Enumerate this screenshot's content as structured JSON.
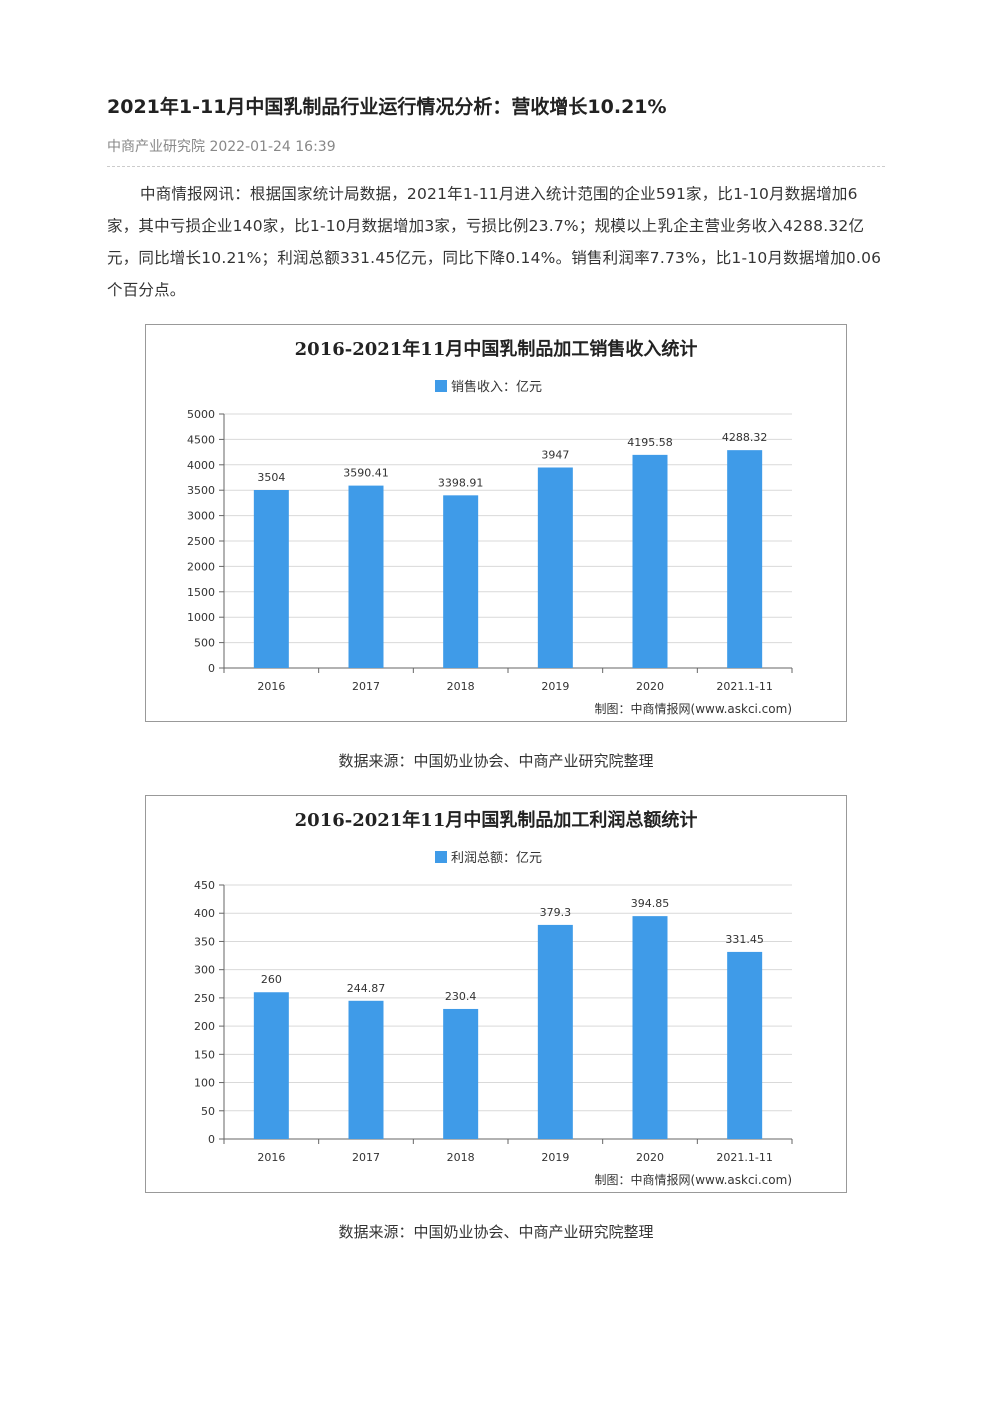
{
  "article": {
    "title": "2021年1-11月中国乳制品行业运行情况分析：营收增长10.21%",
    "meta": "中商产业研究院 2022-01-24 16:39",
    "paragraph": "中商情报网讯：根据国家统计局数据，2021年1-11月进入统计范围的企业591家，比1-10月数据增加6家，其中亏损企业140家，比1-10月数据增加3家，亏损比例23.7%；规模以上乳企主营业务收入4288.32亿元，同比增长10.21%；利润总额331.45亿元，同比下降0.14%。销售利润率7.73%，比1-10月数据增加0.06个百分点。"
  },
  "captions": [
    "数据来源：中国奶业协会、中商产业研究院整理",
    "数据来源：中国奶业协会、中商产业研究院整理"
  ],
  "credit": "制图：中商情报网(www.askci.com)",
  "colors": {
    "bar": "#3f9be8",
    "grid": "#d9d9d9"
  },
  "chart_data": [
    {
      "type": "bar",
      "title": "2016-2021年11月中国乳制品加工销售收入统计",
      "legend": "销售收入：亿元",
      "categories": [
        "2016",
        "2017",
        "2018",
        "2019",
        "2020",
        "2021.1-11"
      ],
      "values": [
        3504,
        3590.41,
        3398.91,
        3947,
        4195.58,
        4288.32
      ],
      "labels": [
        "3504",
        "3590.41",
        "3398.91",
        "3947",
        "4195.58",
        "4288.32"
      ],
      "ylim": [
        0,
        5000
      ],
      "yticks": [
        0,
        500,
        1000,
        1500,
        2000,
        2500,
        3000,
        3500,
        4000,
        4500,
        5000
      ],
      "grid": true,
      "legend_position": "top"
    },
    {
      "type": "bar",
      "title": "2016-2021年11月中国乳制品加工利润总额统计",
      "legend": "利润总额：亿元",
      "categories": [
        "2016",
        "2017",
        "2018",
        "2019",
        "2020",
        "2021.1-11"
      ],
      "values": [
        260,
        244.87,
        230.4,
        379.3,
        394.85,
        331.45
      ],
      "labels": [
        "260",
        "244.87",
        "230.4",
        "379.3",
        "394.85",
        "331.45"
      ],
      "ylim": [
        0,
        450
      ],
      "yticks": [
        0,
        50,
        100,
        150,
        200,
        250,
        300,
        350,
        400,
        450
      ],
      "grid": true,
      "legend_position": "top"
    }
  ]
}
